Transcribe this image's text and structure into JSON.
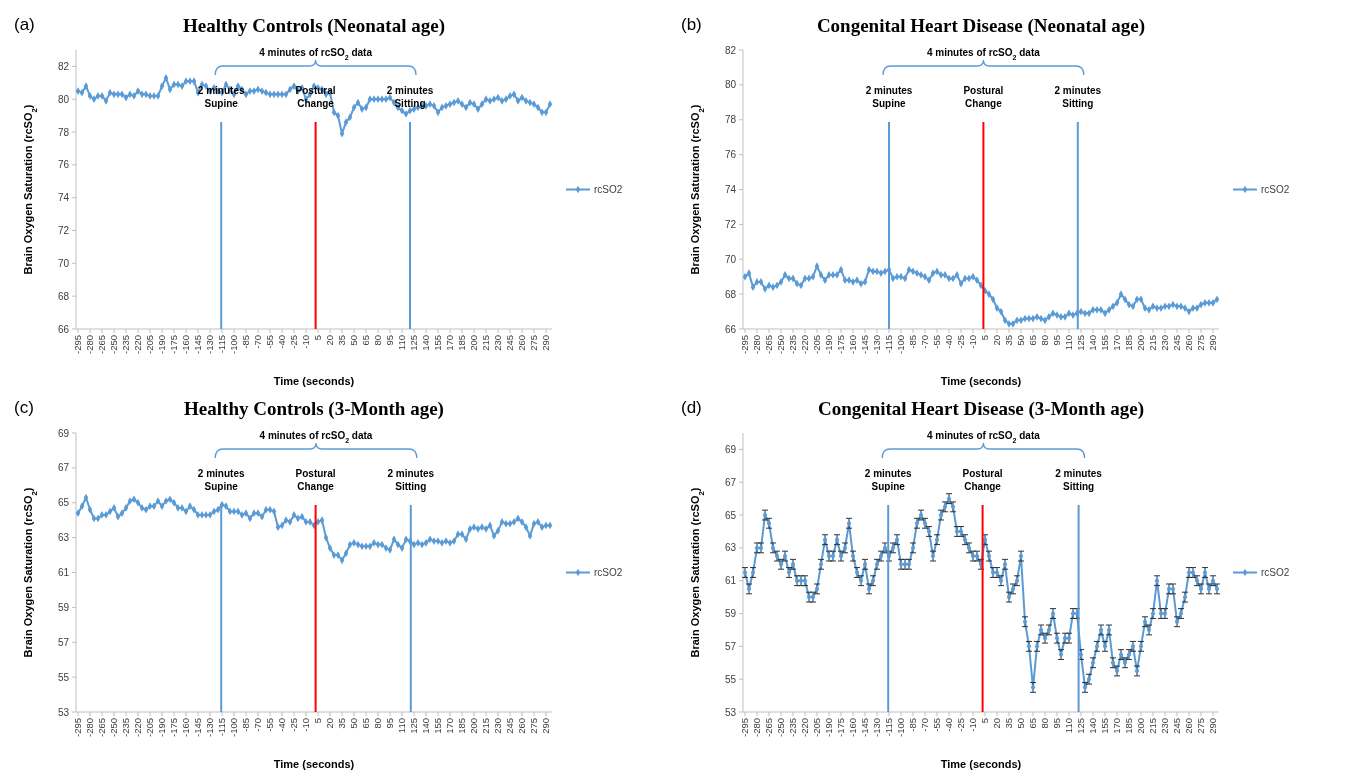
{
  "chart_data": [
    {
      "type": "line",
      "title": "Healthy Controls (Neonatal age)",
      "xlabel": "Time (seconds)",
      "ylabel": "Brain Oxygen  Saturation (rcSO$_{2}$)",
      "legend": "right",
      "marker": "diamond",
      "x": [
        -295,
        -290,
        -285,
        -280,
        -275,
        -270,
        -265,
        -260,
        -255,
        -250,
        -245,
        -240,
        -235,
        -230,
        -225,
        -220,
        -215,
        -210,
        -205,
        -200,
        -195,
        -190,
        -185,
        -180,
        -175,
        -170,
        -165,
        -160,
        -155,
        -150,
        -145,
        -140,
        -135,
        -130,
        -125,
        -120,
        -115,
        -110,
        -105,
        -100,
        -95,
        -90,
        -85,
        -80,
        -75,
        -70,
        -65,
        -60,
        -55,
        -50,
        -45,
        -40,
        -35,
        -30,
        -25,
        -20,
        -15,
        -10,
        -5,
        0,
        5,
        10,
        15,
        20,
        25,
        30,
        35,
        40,
        45,
        50,
        55,
        60,
        65,
        70,
        75,
        80,
        85,
        90,
        95,
        100,
        105,
        110,
        115,
        120,
        125,
        130,
        135,
        140,
        145,
        150,
        155,
        160,
        165,
        170,
        175,
        180,
        185,
        190,
        195,
        200,
        205,
        210,
        215,
        220,
        225,
        230,
        235,
        240,
        245,
        250,
        255,
        260,
        265,
        270,
        275,
        280,
        285,
        290,
        295
      ],
      "series": [
        {
          "name": "rcSO2",
          "color": "#5b9bd5",
          "values": [
            80.5,
            80.4,
            80.8,
            80.2,
            80,
            80.2,
            80.2,
            79.9,
            80.4,
            80.3,
            80.3,
            80.3,
            80.1,
            80.3,
            80.2,
            80.5,
            80.3,
            80.3,
            80.2,
            80.2,
            80.2,
            80.8,
            81.3,
            80.6,
            80.9,
            80.9,
            80.8,
            81.1,
            81.1,
            81.1,
            80.4,
            80.9,
            80.8,
            80.5,
            80.7,
            80.5,
            80.4,
            80.9,
            80.6,
            80.3,
            80.8,
            80.6,
            80.3,
            80.5,
            80.5,
            80.6,
            80.5,
            80.4,
            80.3,
            80.3,
            80.3,
            80.3,
            80.3,
            80.6,
            80.8,
            80.5,
            80.7,
            80,
            80.3,
            80.8,
            80.7,
            80.6,
            80.3,
            80.4,
            79.2,
            79,
            77.9,
            78.6,
            78.9,
            79.5,
            79.8,
            79.4,
            79.5,
            80,
            80,
            80,
            80,
            80,
            80.1,
            79.8,
            79.5,
            79.3,
            79.1,
            79.3,
            79.4,
            79.5,
            79.6,
            79.6,
            79.7,
            79.6,
            79.2,
            79.5,
            79.6,
            79.7,
            79.8,
            79.9,
            79.7,
            79.5,
            79.8,
            79.7,
            79.4,
            79.7,
            80,
            79.9,
            80,
            80.1,
            79.9,
            80,
            80.2,
            80.3,
            79.9,
            80.1,
            79.9,
            79.8,
            79.7,
            79.5,
            79.2,
            79.2,
            79.7
          ]
        }
      ],
      "xlim": [
        -297.5,
        297.5
      ],
      "xticks": [
        -295,
        -280,
        -265,
        -250,
        -235,
        -220,
        -205,
        -190,
        -175,
        -160,
        -145,
        -130,
        -115,
        -100,
        -85,
        -70,
        -55,
        -40,
        -25,
        -10,
        5,
        20,
        35,
        50,
        65,
        80,
        95,
        110,
        125,
        140,
        155,
        170,
        185,
        200,
        215,
        230,
        245,
        260,
        275,
        290
      ],
      "ylim": [
        66,
        83
      ],
      "yticks": [
        66,
        68,
        70,
        72,
        74,
        76,
        78,
        80,
        82
      ],
      "ref_lines": [
        {
          "axis": "x",
          "value": -116,
          "label": "2 minutes\nSupine",
          "color": "#5b9bd5"
        },
        {
          "axis": "x",
          "value": 2,
          "label": "Postural\nChange",
          "color": "#ff0000"
        },
        {
          "axis": "x",
          "value": 120,
          "label": "2 minutes\nSitting",
          "color": "#5b9bd5"
        }
      ],
      "annotations": [
        "(a)",
        "4 minutes of rcSO$_{2}$ data"
      ]
    },
    {
      "type": "line",
      "title": "Congenital Heart Disease (Neonatal age)",
      "xlabel": "Time (seconds)",
      "ylabel": "Brain Oxygen  Saturation (rcSO$_{2}$)",
      "legend": "right",
      "marker": "diamond",
      "x": [
        -295,
        -290,
        -285,
        -280,
        -275,
        -270,
        -265,
        -260,
        -255,
        -250,
        -245,
        -240,
        -235,
        -230,
        -225,
        -220,
        -215,
        -210,
        -205,
        -200,
        -195,
        -190,
        -185,
        -180,
        -175,
        -170,
        -165,
        -160,
        -155,
        -150,
        -145,
        -140,
        -135,
        -130,
        -125,
        -120,
        -115,
        -110,
        -105,
        -100,
        -95,
        -90,
        -85,
        -80,
        -75,
        -70,
        -65,
        -60,
        -55,
        -50,
        -45,
        -40,
        -35,
        -30,
        -25,
        -20,
        -15,
        -10,
        -5,
        0,
        5,
        10,
        15,
        20,
        25,
        30,
        35,
        40,
        45,
        50,
        55,
        60,
        65,
        70,
        75,
        80,
        85,
        90,
        95,
        100,
        105,
        110,
        115,
        120,
        125,
        130,
        135,
        140,
        145,
        150,
        155,
        160,
        165,
        170,
        175,
        180,
        185,
        190,
        195,
        200,
        205,
        210,
        215,
        220,
        225,
        230,
        235,
        240,
        245,
        250,
        255,
        260,
        265,
        270,
        275,
        280,
        285,
        290,
        295
      ],
      "series": [
        {
          "name": "rcSO2",
          "color": "#5b9bd5",
          "values": [
            69,
            69.2,
            68.4,
            68.7,
            68.7,
            68.3,
            68.5,
            68.4,
            68.5,
            68.7,
            69.1,
            68.9,
            68.9,
            68.6,
            68.5,
            68.9,
            68.9,
            69,
            69.6,
            69.1,
            68.8,
            69.1,
            69.1,
            69.1,
            69.4,
            68.8,
            68.8,
            68.7,
            68.8,
            68.6,
            68.7,
            69.4,
            69.3,
            69.3,
            69.2,
            69.3,
            69.4,
            68.9,
            69,
            69,
            68.9,
            69.4,
            69.3,
            69.2,
            69.1,
            69,
            68.8,
            69.2,
            69.3,
            69.1,
            69.1,
            68.9,
            68.9,
            69.1,
            68.6,
            68.9,
            68.9,
            69,
            68.8,
            68.5,
            68.2,
            68,
            67.7,
            67.2,
            67,
            66.5,
            66.3,
            66.3,
            66.5,
            66.5,
            66.6,
            66.6,
            66.6,
            66.7,
            66.6,
            66.5,
            66.7,
            66.9,
            66.8,
            66.7,
            66.7,
            66.9,
            66.8,
            66.9,
            67,
            66.9,
            66.9,
            67.1,
            67.1,
            67.1,
            66.9,
            67.1,
            67.3,
            67.5,
            68,
            67.7,
            67.4,
            67.3,
            67.7,
            67.7,
            67.2,
            67.1,
            67.3,
            67.2,
            67.2,
            67.3,
            67.3,
            67.4,
            67.3,
            67.3,
            67.2,
            67,
            67.2,
            67.2,
            67.4,
            67.5,
            67.5,
            67.5,
            67.7
          ]
        }
      ],
      "xlim": [
        -297.5,
        297.5
      ],
      "xticks": [
        -295,
        -280,
        -265,
        -250,
        -235,
        -220,
        -205,
        -190,
        -175,
        -160,
        -145,
        -130,
        -115,
        -100,
        -85,
        -70,
        -55,
        -40,
        -25,
        -10,
        5,
        20,
        35,
        50,
        65,
        80,
        95,
        110,
        125,
        140,
        155,
        170,
        185,
        200,
        215,
        230,
        245,
        260,
        275,
        290
      ],
      "ylim": [
        66,
        82
      ],
      "yticks": [
        66,
        68,
        70,
        72,
        74,
        76,
        78,
        80,
        82
      ],
      "ref_lines": [
        {
          "axis": "x",
          "value": -115,
          "label": "2 minutes\nSupine",
          "color": "#5b9bd5"
        },
        {
          "axis": "x",
          "value": 3,
          "label": "Postural\nChange",
          "color": "#ff0000"
        },
        {
          "axis": "x",
          "value": 121,
          "label": "2 minutes\nSitting",
          "color": "#5b9bd5"
        }
      ],
      "annotations": [
        "(b)",
        "4 minutes of rcSO$_{2}$ data"
      ]
    },
    {
      "type": "line",
      "title": "Healthy Controls (3-Month age)",
      "xlabel": "Time (seconds)",
      "ylabel": "Brain Oxygen  Saturation (rcSO$_{2}$)",
      "legend": "right",
      "marker": "diamond",
      "x": [
        -295,
        -290,
        -285,
        -280,
        -275,
        -270,
        -265,
        -260,
        -255,
        -250,
        -245,
        -240,
        -235,
        -230,
        -225,
        -220,
        -215,
        -210,
        -205,
        -200,
        -195,
        -190,
        -185,
        -180,
        -175,
        -170,
        -165,
        -160,
        -155,
        -150,
        -145,
        -140,
        -135,
        -130,
        -125,
        -120,
        -115,
        -110,
        -105,
        -100,
        -95,
        -90,
        -85,
        -80,
        -75,
        -70,
        -65,
        -60,
        -55,
        -50,
        -45,
        -40,
        -35,
        -30,
        -25,
        -20,
        -15,
        -10,
        -5,
        0,
        5,
        10,
        15,
        20,
        25,
        30,
        35,
        40,
        45,
        50,
        55,
        60,
        65,
        70,
        75,
        80,
        85,
        90,
        95,
        100,
        105,
        110,
        115,
        120,
        125,
        130,
        135,
        140,
        145,
        150,
        155,
        160,
        165,
        170,
        175,
        180,
        185,
        190,
        195,
        200,
        205,
        210,
        215,
        220,
        225,
        230,
        235,
        240,
        245,
        250,
        255,
        260,
        265,
        270,
        275,
        280,
        285,
        290,
        295
      ],
      "series": [
        {
          "name": "rcSO2",
          "color": "#5b9bd5",
          "values": [
            64.4,
            64.8,
            65.3,
            64.6,
            64.1,
            64.1,
            64.3,
            64.3,
            64.5,
            64.7,
            64.2,
            64.4,
            64.7,
            65.1,
            65.2,
            65,
            64.7,
            64.6,
            64.8,
            64.8,
            65.1,
            64.8,
            65.1,
            65.2,
            65,
            64.7,
            64.7,
            64.5,
            64.8,
            64.6,
            64.3,
            64.3,
            64.3,
            64.3,
            64.5,
            64.6,
            64.9,
            64.8,
            64.5,
            64.5,
            64.5,
            64.3,
            64.4,
            64.1,
            64.4,
            64.4,
            64.2,
            64.6,
            64.6,
            64.5,
            63.6,
            63.7,
            64,
            63.9,
            64.3,
            64.1,
            64.2,
            63.9,
            63.9,
            63.7,
            63.9,
            64,
            63,
            62.4,
            62,
            62,
            61.7,
            62.1,
            62.6,
            62.7,
            62.6,
            62.5,
            62.5,
            62.5,
            62.7,
            62.6,
            62.6,
            62.4,
            62.3,
            62.9,
            62.6,
            62.4,
            62.9,
            62.8,
            62.6,
            62.7,
            62.6,
            62.7,
            62.9,
            62.8,
            62.8,
            62.7,
            62.8,
            62.7,
            62.8,
            63.2,
            63.2,
            62.9,
            63.5,
            63.6,
            63.5,
            63.6,
            63.5,
            63.7,
            63.1,
            63.4,
            63.9,
            63.8,
            63.8,
            63.9,
            64.1,
            63.9,
            63.6,
            63.1,
            63.8,
            63.9,
            63.6,
            63.7,
            63.7
          ]
        }
      ],
      "xlim": [
        -297.5,
        297.5
      ],
      "xticks": [
        -295,
        -280,
        -265,
        -250,
        -235,
        -220,
        -205,
        -190,
        -175,
        -160,
        -145,
        -130,
        -115,
        -100,
        -85,
        -70,
        -55,
        -40,
        -25,
        -10,
        5,
        20,
        35,
        50,
        65,
        80,
        95,
        110,
        125,
        140,
        155,
        170,
        185,
        200,
        215,
        230,
        245,
        260,
        275,
        290
      ],
      "ylim": [
        53,
        69
      ],
      "yticks": [
        53,
        55,
        57,
        59,
        61,
        63,
        65,
        67,
        69
      ],
      "ref_lines": [
        {
          "axis": "x",
          "value": -116,
          "label": "2 minutes\nSupine",
          "color": "#5b9bd5"
        },
        {
          "axis": "x",
          "value": 2,
          "label": "Postural\nChange",
          "color": "#ff0000"
        },
        {
          "axis": "x",
          "value": 121,
          "label": "2 minutes\nSitting",
          "color": "#5b9bd5"
        }
      ],
      "annotations": [
        "(c)",
        "4 minutes of rcSO$_{2}$ data"
      ]
    },
    {
      "type": "line",
      "title": "Congenital Heart Disease (3-Month age)",
      "xlabel": "Time (seconds)",
      "ylabel": "Brain Oxygen  Saturation (rcSO$_{2}$)",
      "legend": "right",
      "marker": "diamond",
      "x": [
        -295,
        -290,
        -285,
        -280,
        -275,
        -270,
        -265,
        -260,
        -255,
        -250,
        -245,
        -240,
        -235,
        -230,
        -225,
        -220,
        -215,
        -210,
        -205,
        -200,
        -195,
        -190,
        -185,
        -180,
        -175,
        -170,
        -165,
        -160,
        -155,
        -150,
        -145,
        -140,
        -135,
        -130,
        -125,
        -120,
        -115,
        -110,
        -105,
        -100,
        -95,
        -90,
        -85,
        -80,
        -75,
        -70,
        -65,
        -60,
        -55,
        -50,
        -45,
        -40,
        -35,
        -30,
        -25,
        -20,
        -15,
        -10,
        -5,
        0,
        5,
        10,
        15,
        20,
        25,
        30,
        35,
        40,
        45,
        50,
        55,
        60,
        65,
        70,
        75,
        80,
        85,
        90,
        95,
        100,
        105,
        110,
        115,
        120,
        125,
        130,
        135,
        140,
        145,
        150,
        155,
        160,
        165,
        170,
        175,
        180,
        185,
        190,
        195,
        200,
        205,
        210,
        215,
        220,
        225,
        230,
        235,
        240,
        245,
        250,
        255,
        260,
        265,
        270,
        275,
        280,
        285,
        290,
        295
      ],
      "series": [
        {
          "name": "rcSO2",
          "color": "#5b9bd5",
          "values": [
            61.5,
            60.5,
            61.5,
            63,
            63,
            65,
            64.5,
            63,
            62.5,
            62,
            62.5,
            61.5,
            62,
            61,
            61,
            61,
            60,
            60,
            60.5,
            62,
            63.5,
            62.5,
            62.5,
            63.5,
            62.5,
            63,
            64.5,
            62.5,
            61.5,
            61,
            62,
            60.5,
            61,
            62,
            62.5,
            63,
            62.5,
            63,
            63.5,
            62,
            62,
            62,
            63,
            64.5,
            65,
            64.5,
            64,
            62.5,
            63.5,
            65,
            65.5,
            66,
            65.5,
            64,
            64,
            63.5,
            63,
            62.5,
            62.5,
            62,
            63.5,
            62.5,
            61.5,
            61.5,
            61,
            62,
            60,
            60.5,
            61,
            62.5,
            58.5,
            57,
            54.5,
            57,
            58,
            57.5,
            58,
            59,
            57.5,
            56.5,
            57.5,
            57.5,
            59,
            59,
            56.5,
            54.5,
            55,
            56,
            57,
            58,
            57,
            58,
            56,
            55.5,
            56.5,
            56,
            56.5,
            57,
            55.5,
            57,
            58.5,
            58,
            59,
            61,
            59,
            59,
            60.5,
            60.5,
            58.5,
            59,
            60,
            61.5,
            61.5,
            61,
            60.5,
            61.5,
            60.5,
            61,
            60.5
          ],
          "errors": [
            0.3,
            0.3,
            0.3,
            0.3,
            0.3,
            0.3,
            0.3,
            0.3,
            0.3,
            0.3,
            0.3,
            0.3,
            0.3,
            0.3,
            0.3,
            0.3,
            0.3,
            0.3,
            0.3,
            0.3,
            0.3,
            0.3,
            0.3,
            0.3,
            0.3,
            0.3,
            0.3,
            0.3,
            0.3,
            0.3,
            0.3,
            0.3,
            0.3,
            0.3,
            0.3,
            0.3,
            0.3,
            0.3,
            0.3,
            0.3,
            0.3,
            0.3,
            0.3,
            0.3,
            0.3,
            0.3,
            0.3,
            0.3,
            0.3,
            0.3,
            0.3,
            0.3,
            0.3,
            0.3,
            0.3,
            0.3,
            0.3,
            0.3,
            0.3,
            0.3,
            0.3,
            0.3,
            0.3,
            0.3,
            0.3,
            0.3,
            0.3,
            0.3,
            0.3,
            0.3,
            0.3,
            0.3,
            0.3,
            0.3,
            0.3,
            0.3,
            0.3,
            0.3,
            0.3,
            0.3,
            0.3,
            0.3,
            0.3,
            0.3,
            0.3,
            0.3,
            0.3,
            0.3,
            0.3,
            0.3,
            0.3,
            0.3,
            0.3,
            0.3,
            0.3,
            0.3,
            0.3,
            0.3,
            0.3,
            0.3,
            0.3,
            0.3,
            0.3,
            0.3,
            0.3,
            0.3,
            0.3,
            0.3,
            0.3,
            0.3,
            0.3,
            0.3,
            0.3,
            0.3,
            0.3,
            0.3,
            0.3,
            0.3,
            0.3
          ]
        }
      ],
      "xlim": [
        -297.5,
        297.5
      ],
      "xticks": [
        -295,
        -280,
        -265,
        -250,
        -235,
        -220,
        -205,
        -190,
        -175,
        -160,
        -145,
        -130,
        -115,
        -100,
        -85,
        -70,
        -55,
        -40,
        -25,
        -10,
        5,
        20,
        35,
        50,
        65,
        80,
        95,
        110,
        125,
        140,
        155,
        170,
        185,
        200,
        215,
        230,
        245,
        260,
        275,
        290
      ],
      "ylim": [
        53,
        70
      ],
      "yticks": [
        53,
        55,
        57,
        59,
        61,
        63,
        65,
        67,
        69
      ],
      "ref_lines": [
        {
          "axis": "x",
          "value": -116,
          "label": "2 minutes\nSupine",
          "color": "#5b9bd5"
        },
        {
          "axis": "x",
          "value": 2,
          "label": "Postural\nChange",
          "color": "#ff0000"
        },
        {
          "axis": "x",
          "value": 122,
          "label": "2 minutes\nSitting",
          "color": "#5b9bd5"
        }
      ],
      "annotations": [
        "(d)",
        "4 minutes of rcSO$_{2}$ data"
      ]
    }
  ]
}
